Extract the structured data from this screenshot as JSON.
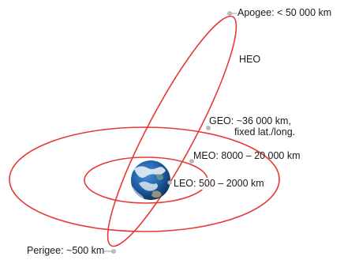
{
  "orbits": {
    "heo": {
      "label": "HEO",
      "apogee_label": "Apogee: < 50 000 km",
      "perigee_label": "Perigee: ~500 km"
    },
    "geo": {
      "label_line1": "GEO: ~36 000 km,",
      "label_line2": "fixed lat./long."
    },
    "meo": {
      "label": "MEO: 8000 – 20 000 km"
    },
    "leo": {
      "label": "LEO:   500 – 2000 km"
    }
  },
  "colors": {
    "orbit_line": "#e53935",
    "earth_ocean": "#1f5fa8",
    "earth_cloud": "#f2f5f8",
    "marker": "#bdbdbd"
  },
  "icons": {
    "earth": "earth-globe-icon",
    "marker": "orbit-marker-icon"
  }
}
